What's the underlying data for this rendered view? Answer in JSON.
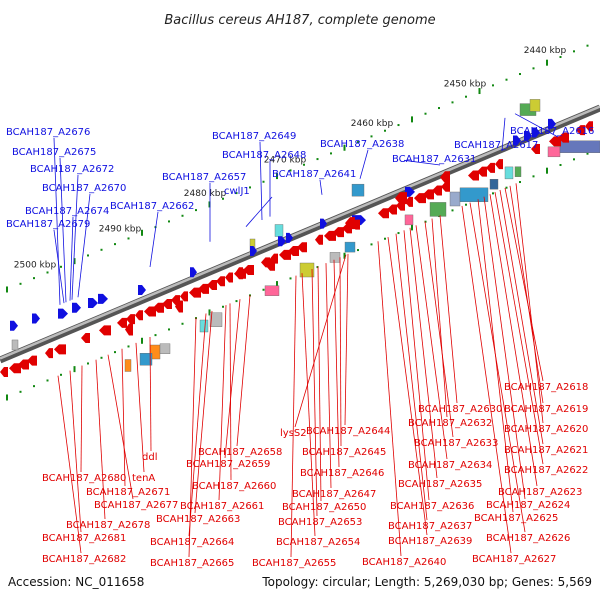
{
  "title": "Bacillus cereus AH187, complete genome",
  "footer": {
    "accession": "Accession: NC_011658",
    "summary": "Topology: circular; Length: 5,269,030 bp; Genes: 5,569"
  },
  "colors": {
    "forward": "#1010e0",
    "reverse": "#e00000",
    "backbone": "#888888",
    "tick": "#118811"
  },
  "kbp_labels": [
    "2440 kbp",
    "2450 kbp",
    "2460 kbp",
    "2470 kbp",
    "2480 kbp",
    "2490 kbp",
    "2500 kbp"
  ],
  "forward_genes": [
    "BCAH187_A2676",
    "BCAH187_A2675",
    "BCAH187_A2672",
    "BCAH187_A2670",
    "BCAH187_A2674",
    "BCAH187_A2679",
    "BCAH187_A2662",
    "BCAH187_A2657",
    "cwlJ1",
    "BCAH187_A2649",
    "BCAH187_A2648",
    "BCAH187_A2641",
    "BCAH187_A2638",
    "BCAH187_A2631",
    "BCAH187_A2617",
    "BCAH187_A2616"
  ],
  "reverse_genes": [
    "BCAH187_A2618",
    "BCAH187_A2619",
    "BCAH187_A2620",
    "BCAH187_A2621",
    "BCAH187_A2622",
    "BCAH187_A2623",
    "BCAH187_A2624",
    "BCAH187_A2625",
    "BCAH187_A2626",
    "BCAH187_A2627",
    "BCAH187_A2630",
    "BCAH187_A2632",
    "BCAH187_A2633",
    "BCAH187_A2634",
    "BCAH187_A2635",
    "BCAH187_A2636",
    "BCAH187_A2637",
    "BCAH187_A2639",
    "BCAH187_A2640",
    "BCAH187_A2644",
    "lysS2",
    "BCAH187_A2645",
    "BCAH187_A2646",
    "BCAH187_A2647",
    "BCAH187_A2650",
    "BCAH187_A2653",
    "BCAH187_A2654",
    "BCAH187_A2655",
    "BCAH187_A2658",
    "BCAH187_A2659",
    "BCAH187_A2660",
    "BCAH187_A2661",
    "BCAH187_A2663",
    "BCAH187_A2664",
    "BCAH187_A2665",
    "ddl",
    "tenA",
    "BCAH187_A2671",
    "BCAH187_A2677",
    "BCAH187_A2678",
    "BCAH187_A2680",
    "BCAH187_A2681",
    "BCAH187_A2682"
  ]
}
